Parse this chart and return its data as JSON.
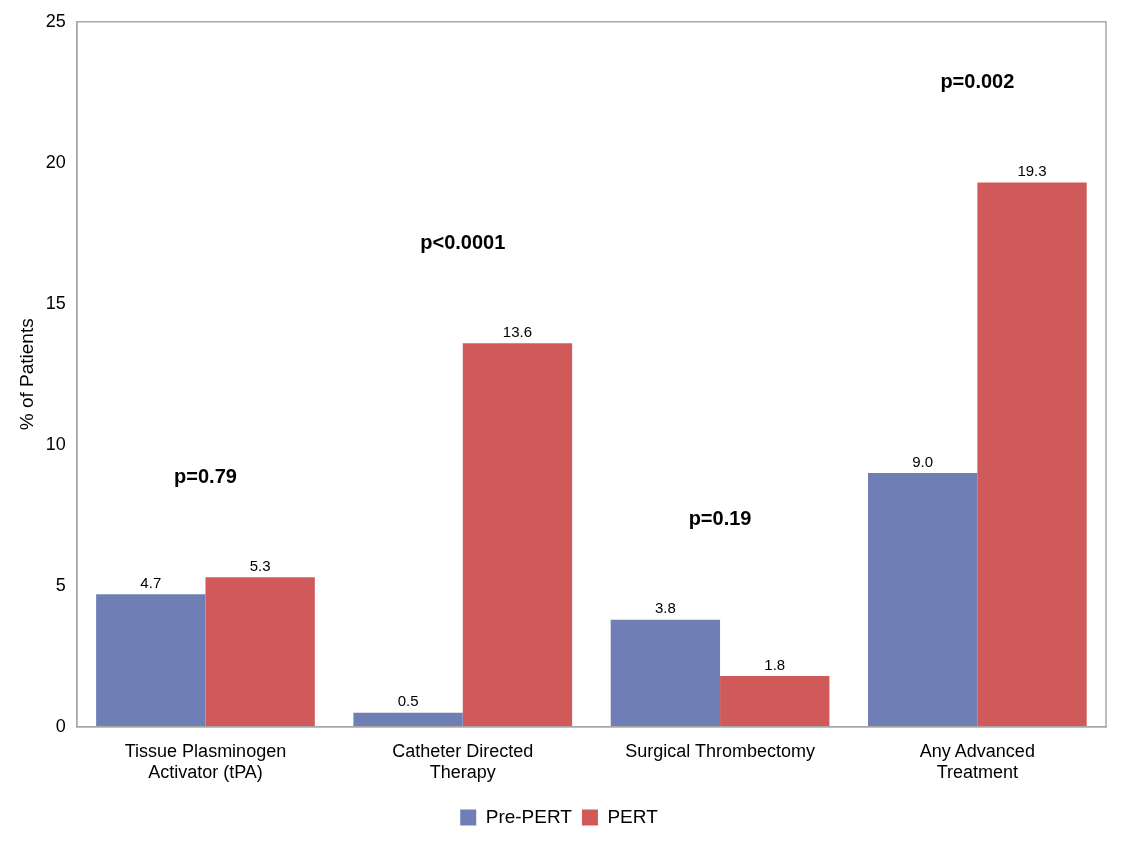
{
  "chart_data": {
    "type": "bar",
    "ylabel": "% of Patients",
    "categories": [
      "Tissue Plasminogen Activator (tPA)",
      "Catheter Directed Therapy",
      "Surgical Thrombectomy",
      "Any Advanced Treatment"
    ],
    "series": [
      {
        "name": "Pre-PERT",
        "color": "#6f7fb5",
        "values": [
          4.7,
          0.5,
          3.8,
          9.0
        ],
        "value_labels": [
          "4.7",
          "0.5",
          "3.8",
          "9.0"
        ]
      },
      {
        "name": "PERT",
        "color": "#d05a5a",
        "values": [
          5.3,
          13.6,
          1.8,
          19.3
        ],
        "value_labels": [
          "5.3",
          "13.6",
          "1.8",
          "19.3"
        ]
      }
    ],
    "ylim": [
      0,
      25
    ],
    "yticks": [
      0,
      5,
      10,
      15,
      20,
      25
    ],
    "grid": false,
    "legend": "bottom",
    "annotations": [
      "p=0.79",
      "p<0.0001",
      "p=0.19",
      "p=0.002"
    ]
  }
}
